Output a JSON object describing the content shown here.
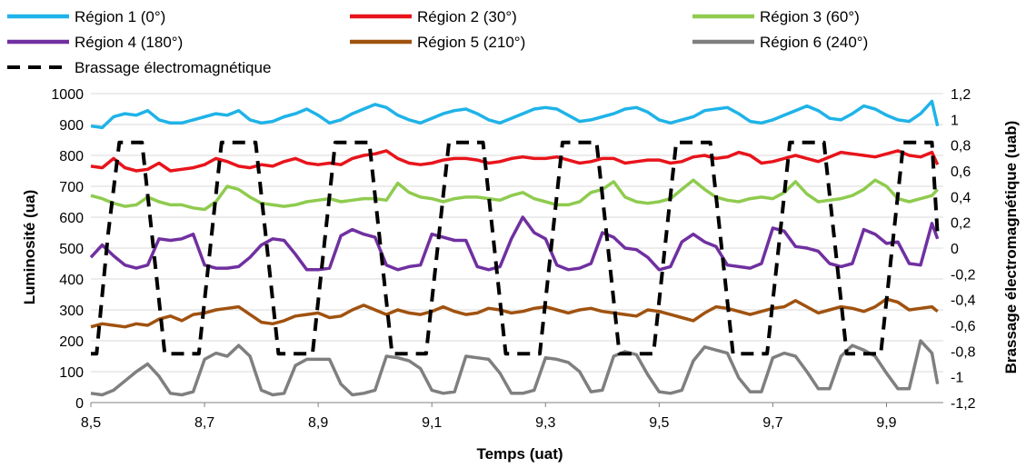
{
  "chart_data": {
    "type": "line",
    "xlabel": "Temps (uat)",
    "ylabel": "Luminosité (ua)",
    "y2label": "Brassage électromagnétique (uab)",
    "xlim": [
      8.5,
      10.0
    ],
    "ylim": [
      0,
      1000
    ],
    "y2lim": [
      -1.2,
      1.2
    ],
    "x_ticks": [
      "8,5",
      "8,7",
      "8,9",
      "9,1",
      "9,3",
      "9,5",
      "9,7",
      "9,9"
    ],
    "x_tick_values": [
      8.5,
      8.7,
      8.9,
      9.1,
      9.3,
      9.5,
      9.7,
      9.9
    ],
    "y_ticks": [
      "0",
      "100",
      "200",
      "300",
      "400",
      "500",
      "600",
      "700",
      "800",
      "900",
      "1000"
    ],
    "y_tick_values": [
      0,
      100,
      200,
      300,
      400,
      500,
      600,
      700,
      800,
      900,
      1000
    ],
    "y2_ticks": [
      "-1,2",
      "-1",
      "-0,8",
      "-0,6",
      "-0,4",
      "-0,2",
      "0",
      "0,2",
      "0,4",
      "0,6",
      "0,8",
      "1",
      "1,2"
    ],
    "y2_tick_values": [
      -1.2,
      -1.0,
      -0.8,
      -0.6,
      -0.4,
      -0.2,
      0,
      0.2,
      0.4,
      0.6,
      0.8,
      1.0,
      1.2
    ],
    "grid": "horizontal",
    "legend_position": "top",
    "series": [
      {
        "name": "Région 1 (0°)",
        "color": "#1FB3E8",
        "axis": "left",
        "x": [
          8.5,
          8.52,
          8.54,
          8.56,
          8.58,
          8.6,
          8.62,
          8.64,
          8.66,
          8.68,
          8.7,
          8.72,
          8.74,
          8.76,
          8.78,
          8.8,
          8.82,
          8.84,
          8.86,
          8.88,
          8.9,
          8.92,
          8.94,
          8.96,
          8.98,
          9.0,
          9.02,
          9.04,
          9.06,
          9.08,
          9.1,
          9.12,
          9.14,
          9.16,
          9.18,
          9.2,
          9.22,
          9.24,
          9.26,
          9.28,
          9.3,
          9.32,
          9.34,
          9.36,
          9.38,
          9.4,
          9.42,
          9.44,
          9.46,
          9.48,
          9.5,
          9.52,
          9.54,
          9.56,
          9.58,
          9.6,
          9.62,
          9.64,
          9.66,
          9.68,
          9.7,
          9.72,
          9.74,
          9.76,
          9.78,
          9.8,
          9.82,
          9.84,
          9.86,
          9.88,
          9.9,
          9.92,
          9.94,
          9.96,
          9.98,
          9.99
        ],
        "y": [
          895,
          890,
          925,
          935,
          930,
          945,
          915,
          905,
          905,
          915,
          925,
          935,
          930,
          945,
          915,
          905,
          910,
          925,
          935,
          950,
          930,
          905,
          915,
          935,
          950,
          965,
          955,
          930,
          915,
          905,
          920,
          935,
          945,
          950,
          935,
          915,
          905,
          920,
          935,
          950,
          955,
          950,
          930,
          910,
          915,
          925,
          935,
          950,
          955,
          940,
          915,
          905,
          915,
          925,
          945,
          950,
          955,
          935,
          910,
          905,
          915,
          930,
          945,
          960,
          945,
          920,
          915,
          935,
          960,
          950,
          930,
          915,
          910,
          935,
          975,
          895
        ]
      },
      {
        "name": "Région 2 (30°)",
        "color": "#E8141B",
        "axis": "left",
        "x": [
          8.5,
          8.52,
          8.54,
          8.56,
          8.58,
          8.6,
          8.62,
          8.64,
          8.66,
          8.68,
          8.7,
          8.72,
          8.74,
          8.76,
          8.78,
          8.8,
          8.82,
          8.84,
          8.86,
          8.88,
          8.9,
          8.92,
          8.94,
          8.96,
          8.98,
          9.0,
          9.02,
          9.04,
          9.06,
          9.08,
          9.1,
          9.12,
          9.14,
          9.16,
          9.18,
          9.2,
          9.22,
          9.24,
          9.26,
          9.28,
          9.3,
          9.32,
          9.34,
          9.36,
          9.38,
          9.4,
          9.42,
          9.44,
          9.46,
          9.48,
          9.5,
          9.52,
          9.54,
          9.56,
          9.58,
          9.6,
          9.62,
          9.64,
          9.66,
          9.68,
          9.7,
          9.72,
          9.74,
          9.76,
          9.78,
          9.8,
          9.82,
          9.84,
          9.86,
          9.88,
          9.9,
          9.92,
          9.94,
          9.96,
          9.98,
          9.99
        ],
        "y": [
          765,
          760,
          790,
          760,
          750,
          755,
          775,
          750,
          755,
          760,
          770,
          790,
          780,
          765,
          760,
          770,
          765,
          780,
          790,
          775,
          770,
          775,
          770,
          790,
          800,
          805,
          815,
          790,
          775,
          770,
          775,
          785,
          790,
          790,
          785,
          775,
          780,
          790,
          795,
          790,
          790,
          795,
          785,
          775,
          780,
          790,
          790,
          775,
          780,
          785,
          785,
          775,
          780,
          795,
          800,
          790,
          795,
          810,
          800,
          775,
          780,
          790,
          800,
          790,
          780,
          795,
          810,
          805,
          800,
          795,
          805,
          815,
          800,
          795,
          810,
          770
        ]
      },
      {
        "name": "Région 3 (60°)",
        "color": "#8FCB4F",
        "axis": "left",
        "x": [
          8.5,
          8.52,
          8.54,
          8.56,
          8.58,
          8.6,
          8.62,
          8.64,
          8.66,
          8.68,
          8.7,
          8.72,
          8.74,
          8.76,
          8.78,
          8.8,
          8.82,
          8.84,
          8.86,
          8.88,
          8.9,
          8.92,
          8.94,
          8.96,
          8.98,
          9.0,
          9.02,
          9.04,
          9.06,
          9.08,
          9.1,
          9.12,
          9.14,
          9.16,
          9.18,
          9.2,
          9.22,
          9.24,
          9.26,
          9.28,
          9.3,
          9.32,
          9.34,
          9.36,
          9.38,
          9.4,
          9.42,
          9.44,
          9.46,
          9.48,
          9.5,
          9.52,
          9.54,
          9.56,
          9.58,
          9.6,
          9.62,
          9.64,
          9.66,
          9.68,
          9.7,
          9.72,
          9.74,
          9.76,
          9.78,
          9.8,
          9.82,
          9.84,
          9.86,
          9.88,
          9.9,
          9.92,
          9.94,
          9.96,
          9.98,
          9.99
        ],
        "y": [
          670,
          660,
          645,
          635,
          640,
          665,
          650,
          640,
          640,
          630,
          625,
          650,
          700,
          690,
          665,
          645,
          640,
          635,
          640,
          650,
          655,
          660,
          650,
          655,
          660,
          660,
          655,
          710,
          680,
          665,
          660,
          650,
          660,
          665,
          665,
          660,
          655,
          670,
          680,
          660,
          650,
          640,
          640,
          650,
          680,
          690,
          715,
          665,
          650,
          645,
          650,
          660,
          690,
          720,
          690,
          665,
          655,
          650,
          660,
          665,
          660,
          680,
          715,
          675,
          650,
          655,
          660,
          670,
          690,
          720,
          700,
          660,
          650,
          660,
          670,
          690
        ]
      },
      {
        "name": "Région 4 (180°)",
        "color": "#7030A0",
        "axis": "left",
        "x": [
          8.5,
          8.52,
          8.54,
          8.56,
          8.58,
          8.6,
          8.62,
          8.64,
          8.66,
          8.68,
          8.7,
          8.72,
          8.74,
          8.76,
          8.78,
          8.8,
          8.82,
          8.84,
          8.86,
          8.88,
          8.9,
          8.92,
          8.94,
          8.96,
          8.98,
          9.0,
          9.02,
          9.04,
          9.06,
          9.08,
          9.1,
          9.12,
          9.14,
          9.16,
          9.18,
          9.2,
          9.22,
          9.24,
          9.26,
          9.28,
          9.3,
          9.32,
          9.34,
          9.36,
          9.38,
          9.4,
          9.42,
          9.44,
          9.46,
          9.48,
          9.5,
          9.52,
          9.54,
          9.56,
          9.58,
          9.6,
          9.62,
          9.64,
          9.66,
          9.68,
          9.7,
          9.72,
          9.74,
          9.76,
          9.78,
          9.8,
          9.82,
          9.84,
          9.86,
          9.88,
          9.9,
          9.92,
          9.94,
          9.96,
          9.98,
          9.99
        ],
        "y": [
          470,
          510,
          475,
          445,
          435,
          445,
          530,
          525,
          530,
          545,
          445,
          435,
          435,
          440,
          470,
          510,
          530,
          525,
          480,
          430,
          430,
          435,
          540,
          560,
          545,
          535,
          445,
          430,
          440,
          445,
          545,
          535,
          525,
          525,
          440,
          430,
          440,
          530,
          600,
          550,
          530,
          445,
          430,
          435,
          450,
          550,
          535,
          500,
          495,
          470,
          430,
          440,
          520,
          545,
          520,
          505,
          445,
          440,
          435,
          450,
          565,
          555,
          505,
          500,
          490,
          450,
          440,
          450,
          560,
          545,
          515,
          520,
          450,
          445,
          580,
          530
        ]
      },
      {
        "name": "Région 5 (210°)",
        "color": "#A0520F",
        "axis": "left",
        "x": [
          8.5,
          8.52,
          8.54,
          8.56,
          8.58,
          8.6,
          8.62,
          8.64,
          8.66,
          8.68,
          8.7,
          8.72,
          8.74,
          8.76,
          8.78,
          8.8,
          8.82,
          8.84,
          8.86,
          8.88,
          8.9,
          8.92,
          8.94,
          8.96,
          8.98,
          9.0,
          9.02,
          9.04,
          9.06,
          9.08,
          9.1,
          9.12,
          9.14,
          9.16,
          9.18,
          9.2,
          9.22,
          9.24,
          9.26,
          9.28,
          9.3,
          9.32,
          9.34,
          9.36,
          9.38,
          9.4,
          9.42,
          9.44,
          9.46,
          9.48,
          9.5,
          9.52,
          9.54,
          9.56,
          9.58,
          9.6,
          9.62,
          9.64,
          9.66,
          9.68,
          9.7,
          9.72,
          9.74,
          9.76,
          9.78,
          9.8,
          9.82,
          9.84,
          9.86,
          9.88,
          9.9,
          9.92,
          9.94,
          9.96,
          9.98,
          9.99
        ],
        "y": [
          245,
          255,
          250,
          245,
          255,
          250,
          270,
          280,
          265,
          285,
          290,
          300,
          305,
          310,
          285,
          260,
          255,
          265,
          280,
          285,
          290,
          275,
          280,
          300,
          315,
          300,
          285,
          300,
          290,
          285,
          295,
          310,
          295,
          285,
          290,
          305,
          300,
          290,
          295,
          305,
          310,
          300,
          290,
          300,
          305,
          295,
          290,
          285,
          280,
          300,
          295,
          285,
          275,
          265,
          290,
          310,
          305,
          295,
          285,
          295,
          305,
          310,
          330,
          310,
          290,
          300,
          310,
          305,
          295,
          310,
          335,
          325,
          300,
          305,
          310,
          295
        ]
      },
      {
        "name": "Région 6 (240°)",
        "color": "#7F7F7F",
        "axis": "left",
        "x": [
          8.5,
          8.52,
          8.54,
          8.56,
          8.58,
          8.6,
          8.62,
          8.64,
          8.66,
          8.68,
          8.7,
          8.72,
          8.74,
          8.76,
          8.78,
          8.8,
          8.82,
          8.84,
          8.86,
          8.88,
          8.9,
          8.92,
          8.94,
          8.96,
          8.98,
          9.0,
          9.02,
          9.04,
          9.06,
          9.08,
          9.1,
          9.12,
          9.14,
          9.16,
          9.18,
          9.2,
          9.22,
          9.24,
          9.26,
          9.28,
          9.3,
          9.32,
          9.34,
          9.36,
          9.38,
          9.4,
          9.42,
          9.44,
          9.46,
          9.48,
          9.5,
          9.52,
          9.54,
          9.56,
          9.58,
          9.6,
          9.62,
          9.64,
          9.66,
          9.68,
          9.7,
          9.72,
          9.74,
          9.76,
          9.78,
          9.8,
          9.82,
          9.84,
          9.86,
          9.88,
          9.9,
          9.92,
          9.94,
          9.96,
          9.98,
          9.99
        ],
        "y": [
          30,
          25,
          40,
          70,
          100,
          125,
          85,
          30,
          25,
          35,
          140,
          160,
          150,
          185,
          150,
          40,
          25,
          30,
          120,
          140,
          140,
          140,
          60,
          25,
          30,
          40,
          150,
          145,
          135,
          110,
          40,
          30,
          35,
          150,
          145,
          140,
          95,
          30,
          30,
          40,
          145,
          140,
          130,
          100,
          35,
          40,
          150,
          165,
          155,
          90,
          35,
          30,
          40,
          135,
          180,
          170,
          160,
          80,
          35,
          35,
          145,
          160,
          150,
          100,
          45,
          45,
          150,
          185,
          170,
          150,
          95,
          45,
          45,
          200,
          160,
          60
        ]
      },
      {
        "name": "Brassage électromagnétique",
        "color": "#000000",
        "axis": "right",
        "dashed": true,
        "x": [
          8.5,
          8.51,
          8.53,
          8.55,
          8.59,
          8.61,
          8.63,
          8.65,
          8.69,
          8.71,
          8.73,
          8.75,
          8.79,
          8.81,
          8.83,
          8.85,
          8.89,
          8.91,
          8.93,
          8.95,
          8.99,
          9.01,
          9.03,
          9.05,
          9.09,
          9.11,
          9.13,
          9.15,
          9.19,
          9.21,
          9.23,
          9.25,
          9.29,
          9.31,
          9.33,
          9.35,
          9.39,
          9.41,
          9.43,
          9.45,
          9.49,
          9.51,
          9.53,
          9.55,
          9.59,
          9.61,
          9.63,
          9.65,
          9.69,
          9.71,
          9.73,
          9.75,
          9.79,
          9.81,
          9.83,
          9.85,
          9.89,
          9.91,
          9.93,
          9.95,
          9.98,
          9.99
        ],
        "y": [
          -0.82,
          -0.82,
          0.1,
          0.82,
          0.82,
          0.0,
          -0.82,
          -0.82,
          -0.82,
          0.0,
          0.82,
          0.82,
          0.82,
          0.0,
          -0.82,
          -0.82,
          -0.82,
          0.0,
          0.82,
          0.82,
          0.82,
          0.0,
          -0.82,
          -0.82,
          -0.82,
          0.0,
          0.82,
          0.82,
          0.82,
          0.0,
          -0.82,
          -0.82,
          -0.82,
          0.0,
          0.82,
          0.82,
          0.82,
          0.0,
          -0.82,
          -0.82,
          -0.82,
          0.0,
          0.82,
          0.82,
          0.82,
          0.0,
          -0.82,
          -0.82,
          -0.82,
          0.0,
          0.82,
          0.82,
          0.82,
          0.0,
          -0.82,
          -0.82,
          -0.82,
          0.0,
          0.82,
          0.82,
          0.82,
          0.1
        ]
      }
    ]
  }
}
